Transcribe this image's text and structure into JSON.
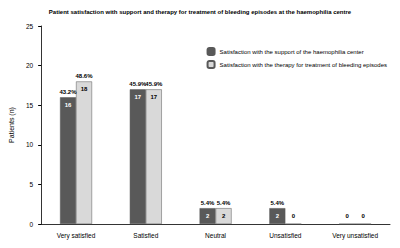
{
  "chart_data": {
    "type": "bar",
    "title": "Patient satisfaction with support and therapy for treatment of bleeding episodes at the haemophilia centre",
    "y_label": "Patients (n)",
    "categories": [
      "Very satisfied",
      "Satisfied",
      "Neutral",
      "Unsatisfied",
      "Very unsatisfied"
    ],
    "series": [
      {
        "name": "Satisfaction with the support of the haemophilia center",
        "color": "#595959",
        "values": [
          16,
          17,
          2,
          2,
          0
        ],
        "percent_labels": [
          "43.2%",
          "45.9%",
          "5.4%",
          "5.4%",
          null
        ]
      },
      {
        "name": "Satisfaction with the therapy for treatment of bleeding episodes",
        "color": "#d9d9d9",
        "values": [
          18,
          17,
          2,
          0,
          0
        ],
        "percent_labels": [
          "48.6%",
          "45.9%",
          "5.4%",
          null,
          null
        ]
      }
    ],
    "ylim": [
      0,
      25
    ],
    "yticks": [
      0,
      5,
      10,
      15,
      20,
      25
    ],
    "grid": false,
    "legend": "upper right",
    "data_labels": true
  }
}
